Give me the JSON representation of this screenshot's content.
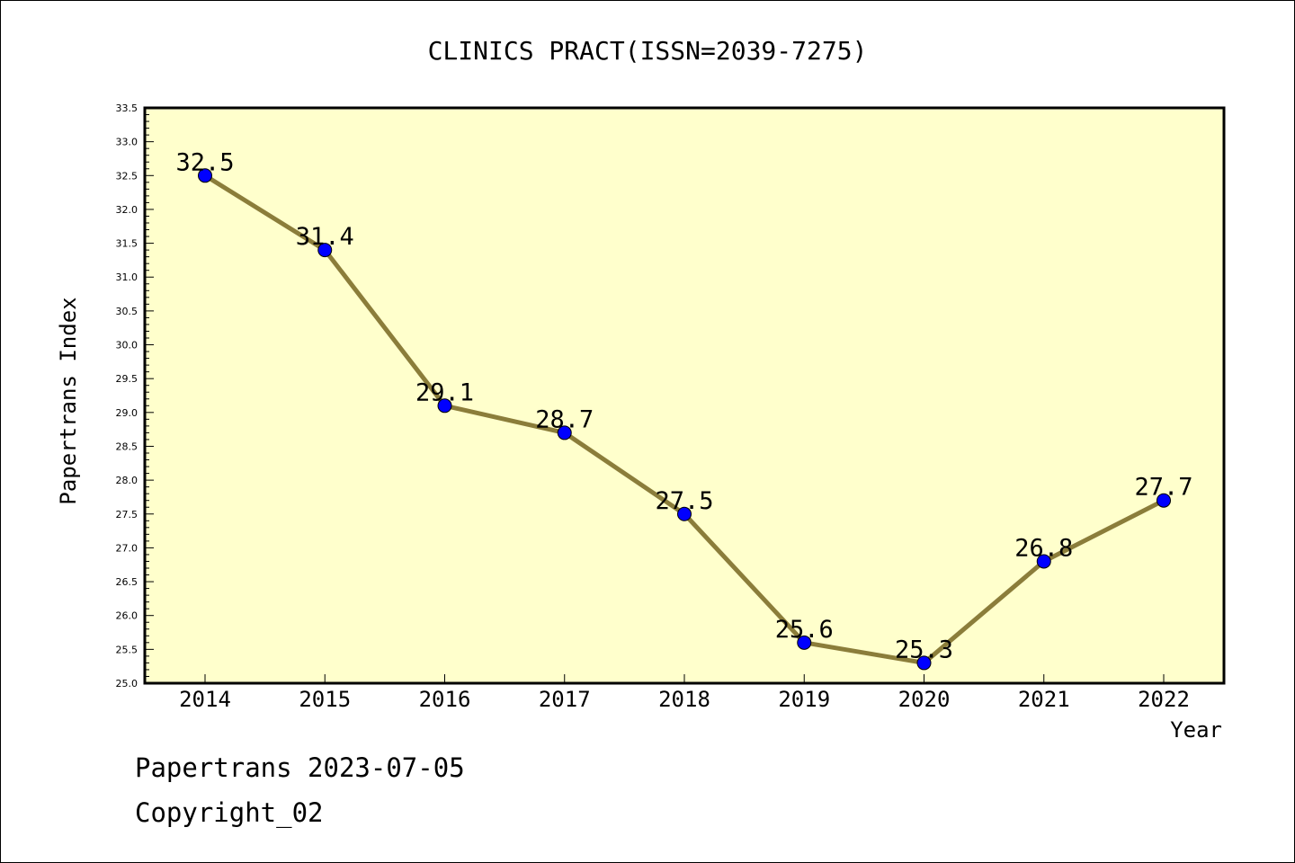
{
  "chart_data": {
    "type": "line",
    "title": "CLINICS PRACT(ISSN=2039-7275)",
    "xlabel": "Year",
    "ylabel": "Papertrans Index",
    "categories": [
      "2014",
      "2015",
      "2016",
      "2017",
      "2018",
      "2019",
      "2020",
      "2021",
      "2022"
    ],
    "values": [
      32.5,
      31.4,
      29.1,
      28.7,
      27.5,
      25.6,
      25.3,
      26.8,
      27.7
    ],
    "data_labels": [
      "32.5",
      "31.4",
      "29.1",
      "28.7",
      "27.5",
      "25.6",
      "25.3",
      "26.8",
      "27.7"
    ],
    "ylim": [
      25.0,
      33.5
    ],
    "yticks": [
      "25.0",
      "25.5",
      "26.0",
      "26.5",
      "27.0",
      "27.5",
      "28.0",
      "28.5",
      "29.0",
      "29.5",
      "30.0",
      "30.5",
      "31.0",
      "31.5",
      "32.0",
      "32.5",
      "33.0",
      "33.5"
    ],
    "grid": false,
    "legend": "none",
    "colors": {
      "plot_background": "#ffffcc",
      "line": "#8b7d3a",
      "marker": "#0000ff"
    }
  },
  "footer": {
    "date_line": "Papertrans 2023-07-05",
    "copyright": "Copyright_02"
  }
}
